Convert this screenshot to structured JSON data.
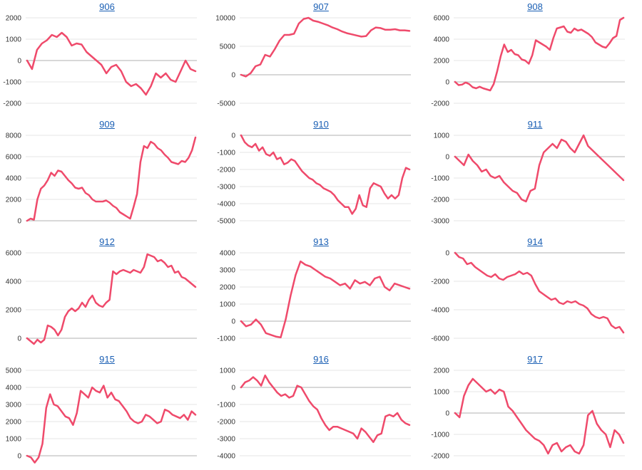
{
  "series_color": "#ef4a6b",
  "grid_color": "#e6e6e6",
  "zero_line_color": "#b0b0b0",
  "chart_data": [
    {
      "type": "line",
      "title": "906",
      "ylim": [
        -2000,
        2000
      ],
      "yticks": [
        2000,
        1000,
        0,
        -1000,
        -2000
      ],
      "grid": true,
      "values": [
        0,
        -400,
        500,
        800,
        950,
        1200,
        1100,
        1300,
        1100,
        700,
        800,
        750,
        400,
        200,
        0,
        -200,
        -600,
        -300,
        -200,
        -500,
        -1000,
        -1200,
        -1100,
        -1300,
        -1600,
        -1200,
        -600,
        -800,
        -600,
        -900,
        -1000,
        -500,
        0,
        -400,
        -500
      ]
    },
    {
      "type": "line",
      "title": "907",
      "ylim": [
        -5000,
        10000
      ],
      "yticks": [
        10000,
        5000,
        0,
        -5000
      ],
      "grid": true,
      "values": [
        0,
        -300,
        300,
        1500,
        1800,
        3500,
        3200,
        4500,
        6000,
        7000,
        7000,
        7200,
        9000,
        9800,
        10000,
        9500,
        9300,
        9000,
        8700,
        8300,
        8000,
        7600,
        7300,
        7100,
        6900,
        6700,
        6800,
        7800,
        8300,
        8200,
        7900,
        7900,
        8000,
        7800,
        7800,
        7700
      ]
    },
    {
      "type": "line",
      "title": "908",
      "ylim": [
        -2000,
        6000
      ],
      "yticks": [
        6000,
        4000,
        2000,
        0,
        -2000
      ],
      "grid": true,
      "values": [
        0,
        -300,
        -250,
        -50,
        -200,
        -500,
        -600,
        -450,
        -600,
        -700,
        -800,
        -200,
        1000,
        2400,
        3500,
        2800,
        3000,
        2600,
        2500,
        2100,
        2000,
        1700,
        2500,
        3900,
        3700,
        3500,
        3300,
        3000,
        4100,
        5000,
        5100,
        5200,
        4700,
        4600,
        5000,
        4800,
        4900,
        4700,
        4500,
        4200,
        3700,
        3500,
        3300,
        3200,
        3600,
        4100,
        4300,
        5800,
        6000
      ]
    },
    {
      "type": "line",
      "title": "909",
      "ylim": [
        0,
        8000
      ],
      "yticks": [
        8000,
        6000,
        4000,
        2000,
        0
      ],
      "grid": true,
      "values": [
        0,
        200,
        100,
        2000,
        3000,
        3300,
        3800,
        4500,
        4200,
        4700,
        4600,
        4200,
        3800,
        3500,
        3100,
        3000,
        3100,
        2600,
        2400,
        2000,
        1800,
        1800,
        1800,
        1900,
        1700,
        1400,
        1200,
        800,
        600,
        400,
        200,
        1300,
        2500,
        5500,
        7000,
        6800,
        7400,
        7200,
        6800,
        6600,
        6200,
        5900,
        5500,
        5400,
        5300,
        5600,
        5500,
        5900,
        6600,
        7800
      ]
    },
    {
      "type": "line",
      "title": "910",
      "ylim": [
        -5000,
        0
      ],
      "yticks": [
        0,
        -1000,
        -2000,
        -3000,
        -4000,
        -5000
      ],
      "grid": true,
      "values": [
        0,
        -400,
        -600,
        -700,
        -500,
        -900,
        -700,
        -1100,
        -1200,
        -1000,
        -1400,
        -1300,
        -1700,
        -1600,
        -1400,
        -1500,
        -1800,
        -2100,
        -2300,
        -2500,
        -2600,
        -2800,
        -2900,
        -3100,
        -3200,
        -3300,
        -3500,
        -3800,
        -4000,
        -4200,
        -4200,
        -4600,
        -4300,
        -3500,
        -4100,
        -4200,
        -3100,
        -2800,
        -2900,
        -3000,
        -3400,
        -3700,
        -3500,
        -3700,
        -3500,
        -2500,
        -1900,
        -2000
      ]
    },
    {
      "type": "line",
      "title": "911",
      "ylim": [
        -3000,
        1000
      ],
      "yticks": [
        1000,
        0,
        -1000,
        -2000,
        -3000
      ],
      "grid": true,
      "values": [
        0,
        -200,
        -400,
        100,
        -200,
        -400,
        -700,
        -600,
        -900,
        -1000,
        -900,
        -1200,
        -1400,
        -1600,
        -1700,
        -2000,
        -2100,
        -1600,
        -1500,
        -400,
        200,
        400,
        600,
        400,
        800,
        700,
        400,
        200,
        600,
        1000,
        500,
        300,
        100,
        -100,
        -300,
        -500,
        -700,
        -900,
        -1100
      ]
    },
    {
      "type": "line",
      "title": "912",
      "ylim": [
        0,
        6000
      ],
      "yticks": [
        6000,
        4000,
        2000,
        0
      ],
      "grid": true,
      "values": [
        0,
        -200,
        -400,
        -100,
        -300,
        -100,
        900,
        800,
        600,
        200,
        600,
        1500,
        1900,
        2100,
        1900,
        2100,
        2500,
        2200,
        2700,
        3000,
        2500,
        2300,
        2200,
        2500,
        2700,
        4700,
        4500,
        4700,
        4800,
        4700,
        4600,
        4800,
        4700,
        4600,
        5000,
        5900,
        5800,
        5700,
        5400,
        5500,
        5300,
        5000,
        5100,
        4600,
        4700,
        4300,
        4200,
        4000,
        3800,
        3600
      ]
    },
    {
      "type": "line",
      "title": "913",
      "ylim": [
        -1000,
        4000
      ],
      "yticks": [
        4000,
        3000,
        2000,
        1000,
        0,
        -1000
      ],
      "grid": true,
      "values": [
        0,
        -300,
        -200,
        100,
        -200,
        -700,
        -800,
        -900,
        -950,
        100,
        1500,
        2700,
        3500,
        3300,
        3200,
        3000,
        2800,
        2600,
        2500,
        2300,
        2100,
        2200,
        1900,
        2400,
        2200,
        2300,
        2100,
        2500,
        2600,
        2000,
        1800,
        2200,
        2100,
        2000,
        1900
      ]
    },
    {
      "type": "line",
      "title": "914",
      "ylim": [
        -6000,
        0
      ],
      "yticks": [
        0,
        -2000,
        -4000,
        -6000
      ],
      "grid": true,
      "values": [
        0,
        -300,
        -400,
        -800,
        -700,
        -1000,
        -1200,
        -1400,
        -1600,
        -1700,
        -1500,
        -1800,
        -1900,
        -1700,
        -1600,
        -1500,
        -1300,
        -1500,
        -1400,
        -1600,
        -2200,
        -2700,
        -2900,
        -3100,
        -3300,
        -3200,
        -3500,
        -3600,
        -3400,
        -3500,
        -3400,
        -3600,
        -3700,
        -3900,
        -4300,
        -4500,
        -4600,
        -4500,
        -4600,
        -5100,
        -5300,
        -5200,
        -5600
      ]
    },
    {
      "type": "line",
      "title": "915",
      "ylim": [
        0,
        5000
      ],
      "yticks": [
        5000,
        4000,
        3000,
        2000,
        1000,
        0
      ],
      "grid": true,
      "values": [
        0,
        -100,
        -400,
        -100,
        700,
        2800,
        3600,
        3000,
        2900,
        2600,
        2300,
        2200,
        1800,
        2500,
        3800,
        3600,
        3400,
        4000,
        3800,
        3700,
        4100,
        3400,
        3700,
        3300,
        3200,
        2900,
        2600,
        2200,
        2000,
        1900,
        2000,
        2400,
        2300,
        2100,
        1900,
        2000,
        2700,
        2600,
        2400,
        2300,
        2200,
        2400,
        2100,
        2600,
        2400
      ]
    },
    {
      "type": "line",
      "title": "916",
      "ylim": [
        -4000,
        1000
      ],
      "yticks": [
        1000,
        0,
        -1000,
        -2000,
        -3000,
        -4000
      ],
      "grid": true,
      "values": [
        0,
        300,
        400,
        600,
        400,
        100,
        700,
        300,
        0,
        -300,
        -500,
        -400,
        -600,
        -500,
        100,
        0,
        -400,
        -800,
        -1100,
        -1300,
        -1800,
        -2200,
        -2500,
        -2300,
        -2300,
        -2400,
        -2500,
        -2600,
        -2700,
        -3000,
        -2400,
        -2600,
        -2900,
        -3200,
        -2800,
        -2700,
        -1700,
        -1600,
        -1700,
        -1500,
        -1900,
        -2100,
        -2200
      ]
    },
    {
      "type": "line",
      "title": "917",
      "ylim": [
        -2000,
        2000
      ],
      "yticks": [
        2000,
        1000,
        0,
        -1000,
        -2000
      ],
      "grid": true,
      "values": [
        0,
        -200,
        800,
        1300,
        1600,
        1400,
        1200,
        1000,
        1100,
        900,
        1100,
        1000,
        300,
        100,
        -200,
        -500,
        -800,
        -1000,
        -1200,
        -1300,
        -1500,
        -1900,
        -1500,
        -1400,
        -1800,
        -1600,
        -1500,
        -1800,
        -1900,
        -1500,
        -100,
        100,
        -500,
        -800,
        -1000,
        -1600,
        -800,
        -1000,
        -1400
      ]
    }
  ]
}
